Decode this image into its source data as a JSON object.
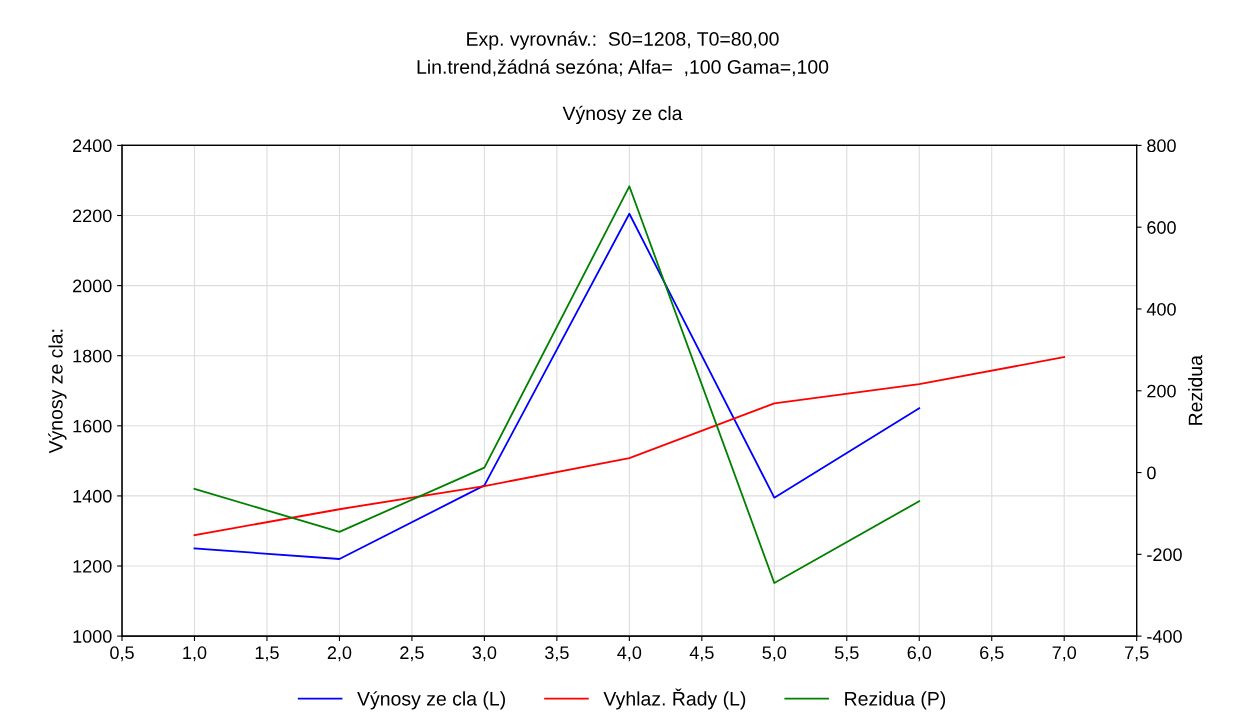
{
  "chart_data": {
    "type": "line",
    "title": "Exp. vyrovnáv.:  S0=1208, T0=80,00\nLin.trend,žádná sezóna; Alfa=  ,100 Gama=,100",
    "subtitle": "Výnosy ze cla",
    "ylabel": "Výnosy ze cla:",
    "y2label": "Rezidua",
    "series": [
      {
        "name": "Výnosy ze cla (L)",
        "color": "#0000ff",
        "x": [
          1,
          2,
          3,
          4,
          5,
          6
        ],
        "values": [
          1250,
          1220,
          1430,
          2205,
          1395,
          1650
        ]
      },
      {
        "name": "Vyhlaz. Řady (L)",
        "color": "#ff0000",
        "x": [
          1,
          2,
          3,
          4,
          5,
          6,
          7
        ],
        "values": [
          1288,
          1362,
          1428,
          1508,
          1664,
          1719,
          1796
        ]
      },
      {
        "name": "Rezidua (P)",
        "color": "#008000",
        "axis": "y2",
        "x": [
          1,
          2,
          3,
          4,
          5,
          6
        ],
        "values": [
          -40,
          -145,
          12,
          700,
          -270,
          -70
        ]
      }
    ],
    "xlim": [
      0.5,
      7.5
    ],
    "xticks": [
      {
        "value": 0.5,
        "label": "0,5"
      },
      {
        "value": 1,
        "label": "1,0"
      },
      {
        "value": 1.5,
        "label": "1,5"
      },
      {
        "value": 2,
        "label": "2,0"
      },
      {
        "value": 2.5,
        "label": "2,5"
      },
      {
        "value": 3,
        "label": "3,0"
      },
      {
        "value": 3.5,
        "label": "3,5"
      },
      {
        "value": 4,
        "label": "4,0"
      },
      {
        "value": 4.5,
        "label": "4,5"
      },
      {
        "value": 5,
        "label": "5,0"
      },
      {
        "value": 5.5,
        "label": "5,5"
      },
      {
        "value": 6,
        "label": "6,0"
      },
      {
        "value": 6.5,
        "label": "6,5"
      },
      {
        "value": 7,
        "label": "7,0"
      },
      {
        "value": 7.5,
        "label": "7,5"
      }
    ],
    "ylim": [
      1000,
      2400
    ],
    "yticks": [
      1000,
      1200,
      1400,
      1600,
      1800,
      2000,
      2200,
      2400
    ],
    "y2lim": [
      -400,
      800
    ],
    "y2ticks": [
      -400,
      -200,
      0,
      200,
      400,
      600,
      800
    ],
    "grid": true,
    "legend": "bottom",
    "marker": "none",
    "line_style": "solid"
  }
}
